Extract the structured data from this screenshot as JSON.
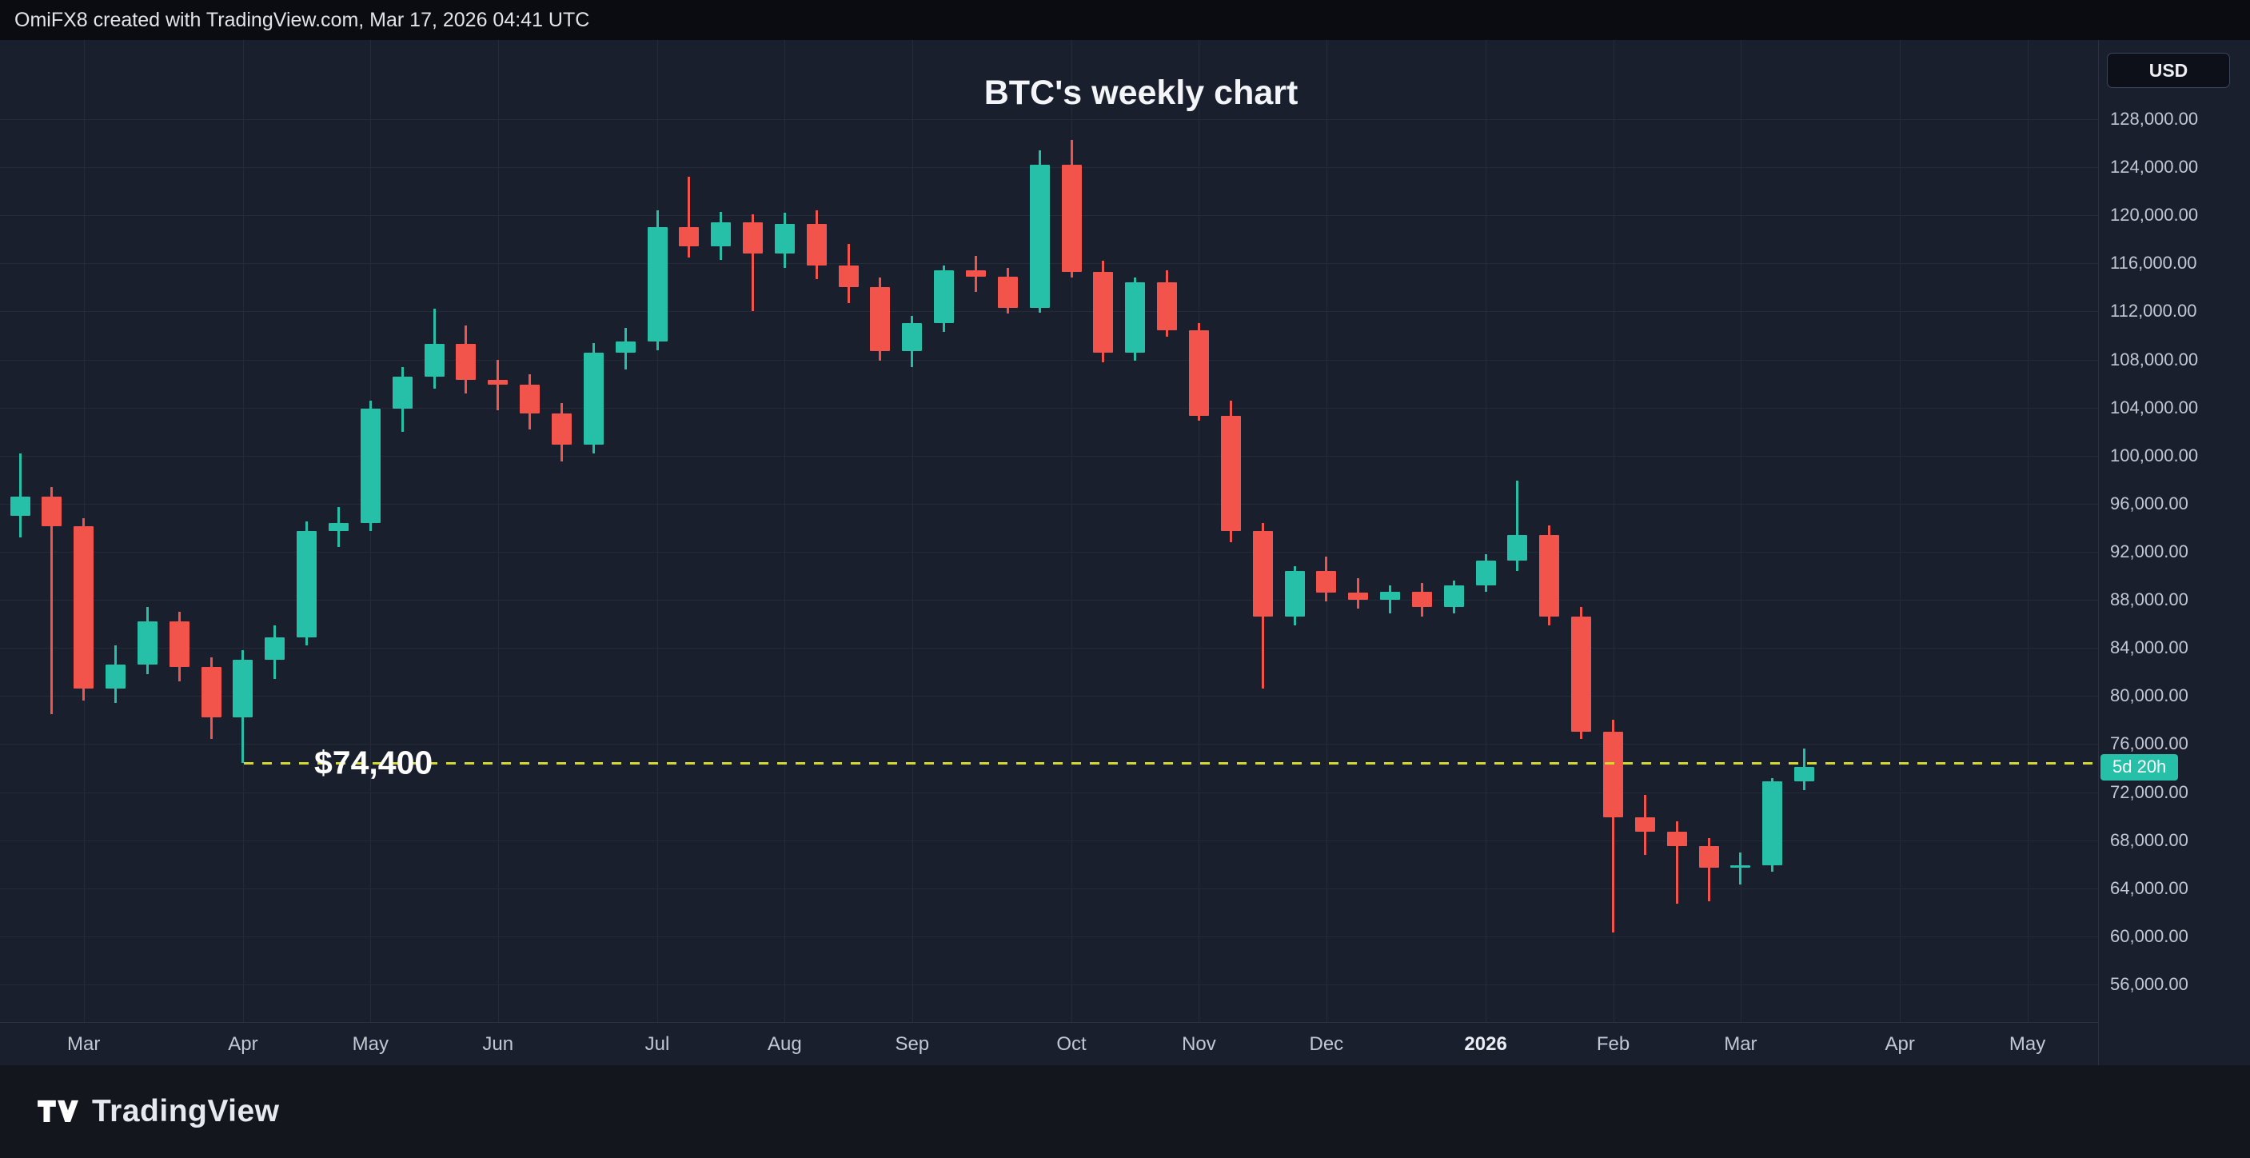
{
  "topbar": {
    "attribution": "OmiFX8 created with TradingView.com, Mar 17, 2026 04:41 UTC"
  },
  "price_axis": {
    "currency": "USD",
    "countdown": "5d 20h"
  },
  "footer": {
    "brand": "TradingView"
  },
  "colors": {
    "up": "#26bfa8",
    "down": "#f2544c",
    "chart_bg": "#1a1f2e",
    "topbar_bg": "#0a0c12",
    "footer_bg": "#14161e",
    "grid": "#232a3a",
    "axis_line": "#2b3140",
    "axis_text": "#c2c7d2",
    "title_text": "#f3f5f9",
    "level": "#d5d92e",
    "badge_bg": "#26bfa8",
    "badge_text": "#ffffff"
  },
  "chart_data": {
    "type": "candlestick",
    "title": "BTC's weekly chart",
    "symbol": "BTC",
    "interval": "1W",
    "unit": "USD",
    "grid": true,
    "legend_position": "none",
    "y_axis": {
      "min": 56000,
      "max": 128000,
      "step": 4000
    },
    "x_ticks": [
      {
        "label": "Mar",
        "index": 2
      },
      {
        "label": "Apr",
        "index": 7
      },
      {
        "label": "May",
        "index": 11
      },
      {
        "label": "Jun",
        "index": 15
      },
      {
        "label": "Jul",
        "index": 20
      },
      {
        "label": "Aug",
        "index": 24
      },
      {
        "label": "Sep",
        "index": 28
      },
      {
        "label": "Oct",
        "index": 33
      },
      {
        "label": "Nov",
        "index": 37
      },
      {
        "label": "Dec",
        "index": 41
      },
      {
        "label": "2026",
        "index": 46,
        "year": true
      },
      {
        "label": "Feb",
        "index": 50
      },
      {
        "label": "Mar",
        "index": 54
      },
      {
        "label": "Apr",
        "index": 59
      },
      {
        "label": "May",
        "index": 63
      }
    ],
    "columns": [
      "open",
      "high",
      "low",
      "close"
    ],
    "candles": [
      [
        95000,
        100200,
        93200,
        96600
      ],
      [
        96600,
        97400,
        78500,
        94100
      ],
      [
        94100,
        94800,
        79600,
        80600
      ],
      [
        80600,
        84200,
        79400,
        82600
      ],
      [
        82600,
        87400,
        81800,
        86200
      ],
      [
        86200,
        87000,
        81200,
        82400
      ],
      [
        82400,
        83200,
        76400,
        78200
      ],
      [
        78200,
        83800,
        74400,
        83000
      ],
      [
        83000,
        85900,
        81400,
        84900
      ],
      [
        84900,
        94500,
        84200,
        93700
      ],
      [
        93700,
        95700,
        92400,
        94400
      ],
      [
        94400,
        104600,
        93700,
        103900
      ],
      [
        103900,
        107400,
        102000,
        106600
      ],
      [
        106600,
        112200,
        105600,
        109300
      ],
      [
        109300,
        110800,
        105200,
        106300
      ],
      [
        106300,
        108000,
        103800,
        105900
      ],
      [
        105900,
        106800,
        102200,
        103500
      ],
      [
        103500,
        104400,
        99500,
        100900
      ],
      [
        100900,
        109400,
        100200,
        108600
      ],
      [
        108600,
        110600,
        107200,
        109500
      ],
      [
        109500,
        120400,
        108800,
        119000
      ],
      [
        119000,
        123200,
        116500,
        117400
      ],
      [
        117400,
        120300,
        116300,
        119400
      ],
      [
        119400,
        120100,
        112000,
        116800
      ],
      [
        116800,
        120200,
        115600,
        119300
      ],
      [
        119300,
        120400,
        114700,
        115800
      ],
      [
        115800,
        117600,
        112700,
        114000
      ],
      [
        114000,
        114800,
        107900,
        108700
      ],
      [
        108700,
        111600,
        107400,
        111000
      ],
      [
        111000,
        115800,
        110300,
        115400
      ],
      [
        115400,
        116600,
        113600,
        114900
      ],
      [
        114900,
        115600,
        111800,
        112300
      ],
      [
        112300,
        125400,
        111900,
        124200
      ],
      [
        124200,
        126300,
        114800,
        115300
      ],
      [
        115300,
        116200,
        107800,
        108600
      ],
      [
        108600,
        114800,
        107900,
        114400
      ],
      [
        114400,
        115400,
        109900,
        110400
      ],
      [
        110400,
        111000,
        102900,
        103300
      ],
      [
        103300,
        104600,
        92800,
        93700
      ],
      [
        93700,
        94400,
        80600,
        86600
      ],
      [
        86600,
        90800,
        85900,
        90400
      ],
      [
        90400,
        91600,
        87900,
        88600
      ],
      [
        88600,
        89800,
        87300,
        88000
      ],
      [
        88000,
        89200,
        86900,
        88700
      ],
      [
        88700,
        89400,
        86600,
        87400
      ],
      [
        87400,
        89600,
        86900,
        89200
      ],
      [
        89200,
        91800,
        88700,
        91300
      ],
      [
        91300,
        97900,
        90400,
        93400
      ],
      [
        93400,
        94200,
        85900,
        86600
      ],
      [
        86600,
        87400,
        76400,
        77000
      ],
      [
        77000,
        78000,
        60300,
        69900
      ],
      [
        69900,
        71800,
        66800,
        68700
      ],
      [
        68700,
        69600,
        62700,
        67500
      ],
      [
        67500,
        68200,
        62900,
        65700
      ],
      [
        65700,
        67000,
        64300,
        65900
      ],
      [
        65900,
        73200,
        65400,
        72900
      ],
      [
        72900,
        75600,
        72200,
        74100
      ]
    ],
    "annotations": [
      {
        "type": "horizontal_dashed_line",
        "price": 74400,
        "label": "$74,400"
      }
    ]
  }
}
